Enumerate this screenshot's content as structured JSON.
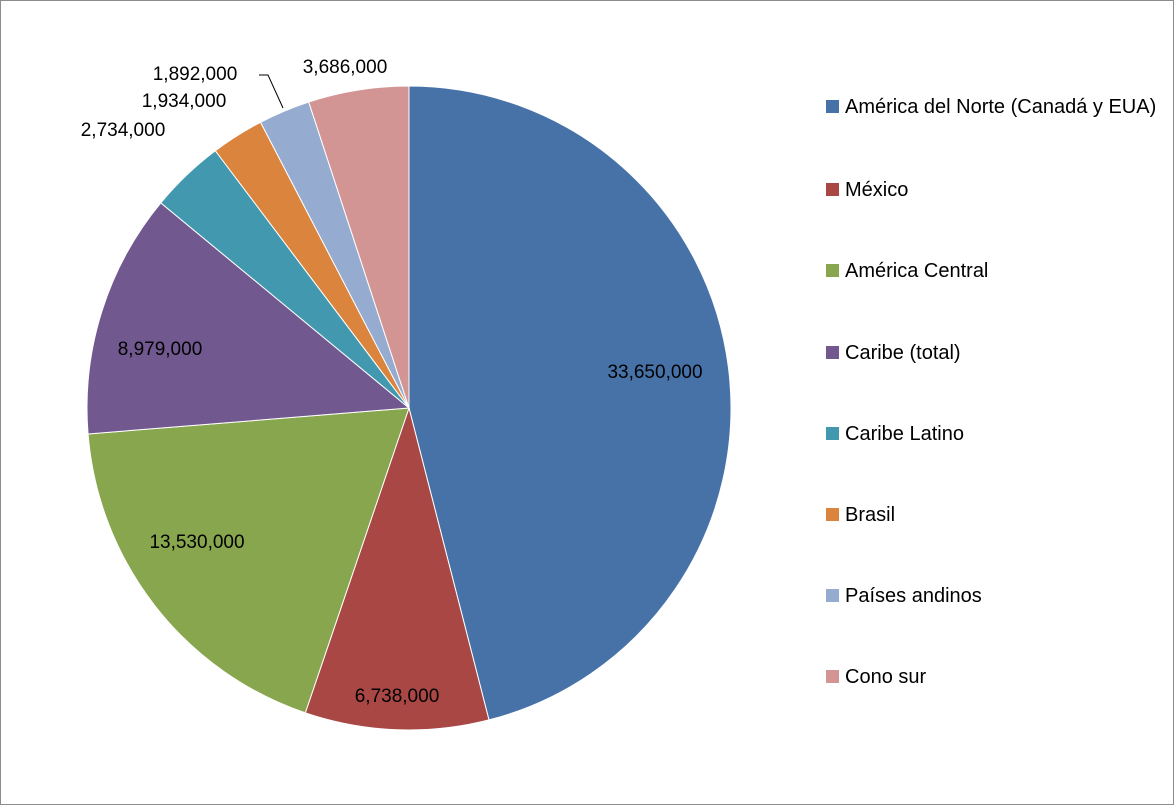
{
  "chart_data": {
    "type": "pie",
    "title": "",
    "start_angle_deg": 0,
    "direction": "clockwise",
    "legend_position": "right",
    "slices": [
      {
        "label": "América del Norte (Canadá y EUA)",
        "value": 33650000,
        "value_label": "33,650,000",
        "color": "#4672a8"
      },
      {
        "label": "México",
        "value": 6738000,
        "value_label": "6,738,000",
        "color": "#a84744"
      },
      {
        "label": "América Central",
        "value": 13530000,
        "value_label": "13,530,000",
        "color": "#88a64d"
      },
      {
        "label": "Caribe (total)",
        "value": 8979000,
        "value_label": "8,979,000",
        "color": "#71588f"
      },
      {
        "label": "Caribe Latino",
        "value": 2734000,
        "value_label": "2,734,000",
        "color": "#4298ae"
      },
      {
        "label": "Brasil",
        "value": 1934000,
        "value_label": "1,934,000",
        "color": "#db843d"
      },
      {
        "label": "Países andinos",
        "value": 1892000,
        "value_label": "1,892,000",
        "color": "#95abd0"
      },
      {
        "label": "Cono sur",
        "value": 3686000,
        "value_label": "3,686,000",
        "color": "#d39594"
      }
    ]
  }
}
